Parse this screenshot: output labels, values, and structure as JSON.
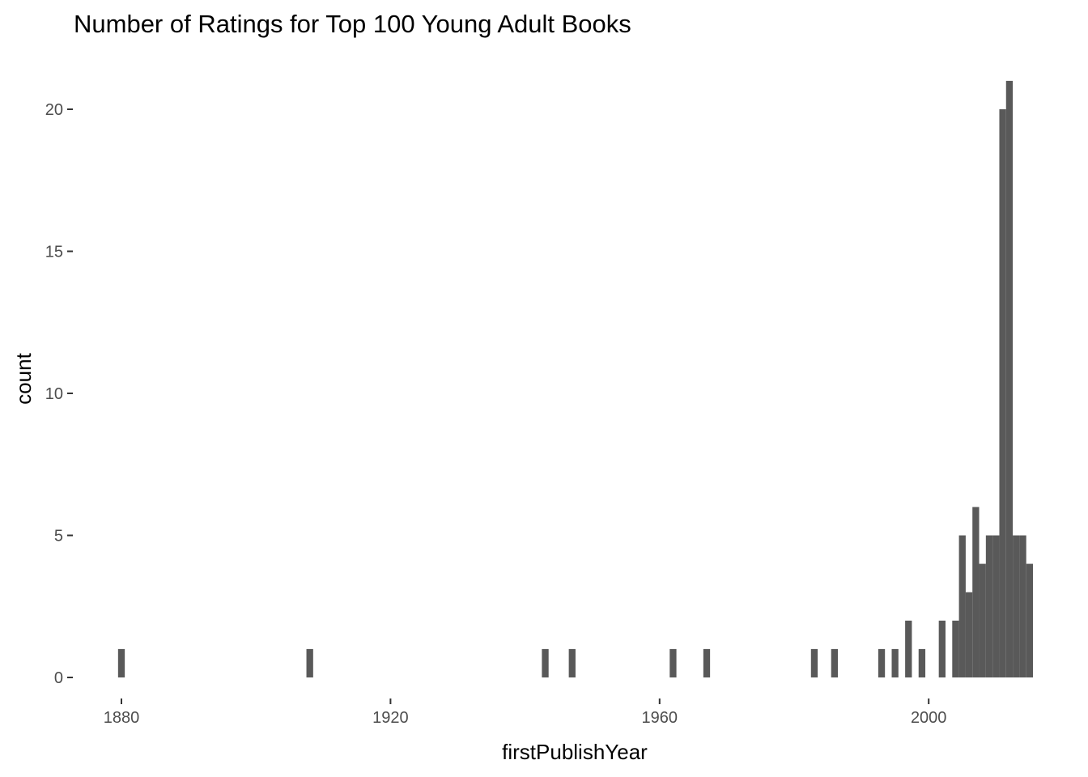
{
  "chart_data": {
    "type": "bar",
    "title": "Number of Ratings for Top 100 Young Adult Books",
    "xlabel": "firstPublishYear",
    "ylabel": "count",
    "xlim": [
      1880,
      2016
    ],
    "ylim": [
      0,
      21
    ],
    "x_ticks": [
      1880,
      1920,
      1960,
      2000
    ],
    "y_ticks": [
      0,
      5,
      10,
      15,
      20
    ],
    "bar_color": "#595959",
    "grid": false,
    "bins": [
      {
        "x": 1880,
        "count": 1
      },
      {
        "x": 1908,
        "count": 1
      },
      {
        "x": 1943,
        "count": 1
      },
      {
        "x": 1947,
        "count": 1
      },
      {
        "x": 1962,
        "count": 1
      },
      {
        "x": 1967,
        "count": 1
      },
      {
        "x": 1983,
        "count": 1
      },
      {
        "x": 1986,
        "count": 1
      },
      {
        "x": 1993,
        "count": 1
      },
      {
        "x": 1995,
        "count": 1
      },
      {
        "x": 1997,
        "count": 2
      },
      {
        "x": 1999,
        "count": 1
      },
      {
        "x": 2002,
        "count": 2
      },
      {
        "x": 2004,
        "count": 2
      },
      {
        "x": 2005,
        "count": 5
      },
      {
        "x": 2006,
        "count": 3
      },
      {
        "x": 2007,
        "count": 6
      },
      {
        "x": 2008,
        "count": 4
      },
      {
        "x": 2009,
        "count": 5
      },
      {
        "x": 2010,
        "count": 5
      },
      {
        "x": 2011,
        "count": 20
      },
      {
        "x": 2012,
        "count": 21
      },
      {
        "x": 2013,
        "count": 5
      },
      {
        "x": 2014,
        "count": 5
      },
      {
        "x": 2015,
        "count": 4
      }
    ]
  }
}
